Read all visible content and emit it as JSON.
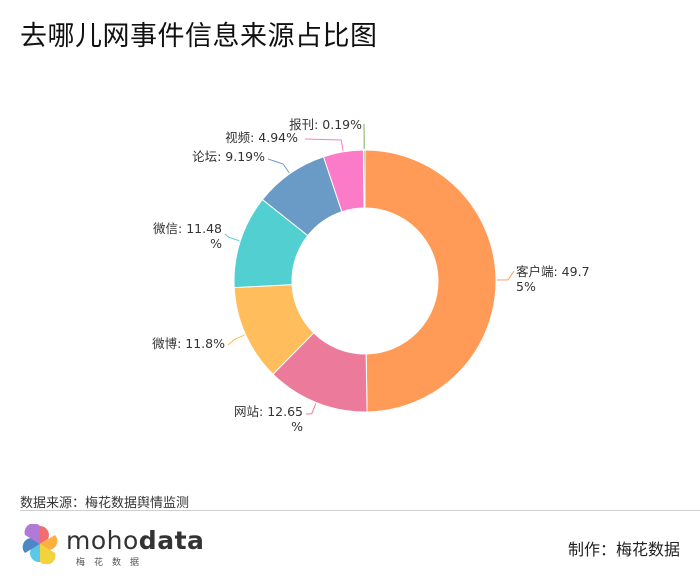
{
  "title": "去哪儿网事件信息来源占比图",
  "footer": {
    "source": "数据来源：梅花数据舆情监测",
    "maker": "制作：梅花数据",
    "logo_word_a": "moho",
    "logo_word_b": "data",
    "logo_sub": "梅花数据"
  },
  "chart_data": {
    "type": "pie",
    "donut": true,
    "title": "去哪儿网事件信息来源占比图",
    "slices": [
      {
        "name": "客户端",
        "value": 49.75,
        "label_lines": [
          "客户端: 49.7",
          "5%"
        ],
        "color": "#FF9A57"
      },
      {
        "name": "网站",
        "value": 12.65,
        "label_lines": [
          "网站: 12.65",
          "%"
        ],
        "color": "#EC7A9B"
      },
      {
        "name": "微博",
        "value": 11.8,
        "label_lines": [
          "微博: 11.8%"
        ],
        "color": "#FFBE5B"
      },
      {
        "name": "微信",
        "value": 11.48,
        "label_lines": [
          "微信: 11.48",
          "%"
        ],
        "color": "#52CFD1"
      },
      {
        "name": "论坛",
        "value": 9.19,
        "label_lines": [
          "论坛: 9.19%"
        ],
        "color": "#6A9BC7"
      },
      {
        "name": "视频",
        "value": 4.94,
        "label_lines": [
          "视频: 4.94%"
        ],
        "color": "#FC7BC8"
      },
      {
        "name": "报刊",
        "value": 0.19,
        "label_lines": [
          "报刊: 0.19%"
        ],
        "color": "#7AAE5F"
      }
    ]
  }
}
